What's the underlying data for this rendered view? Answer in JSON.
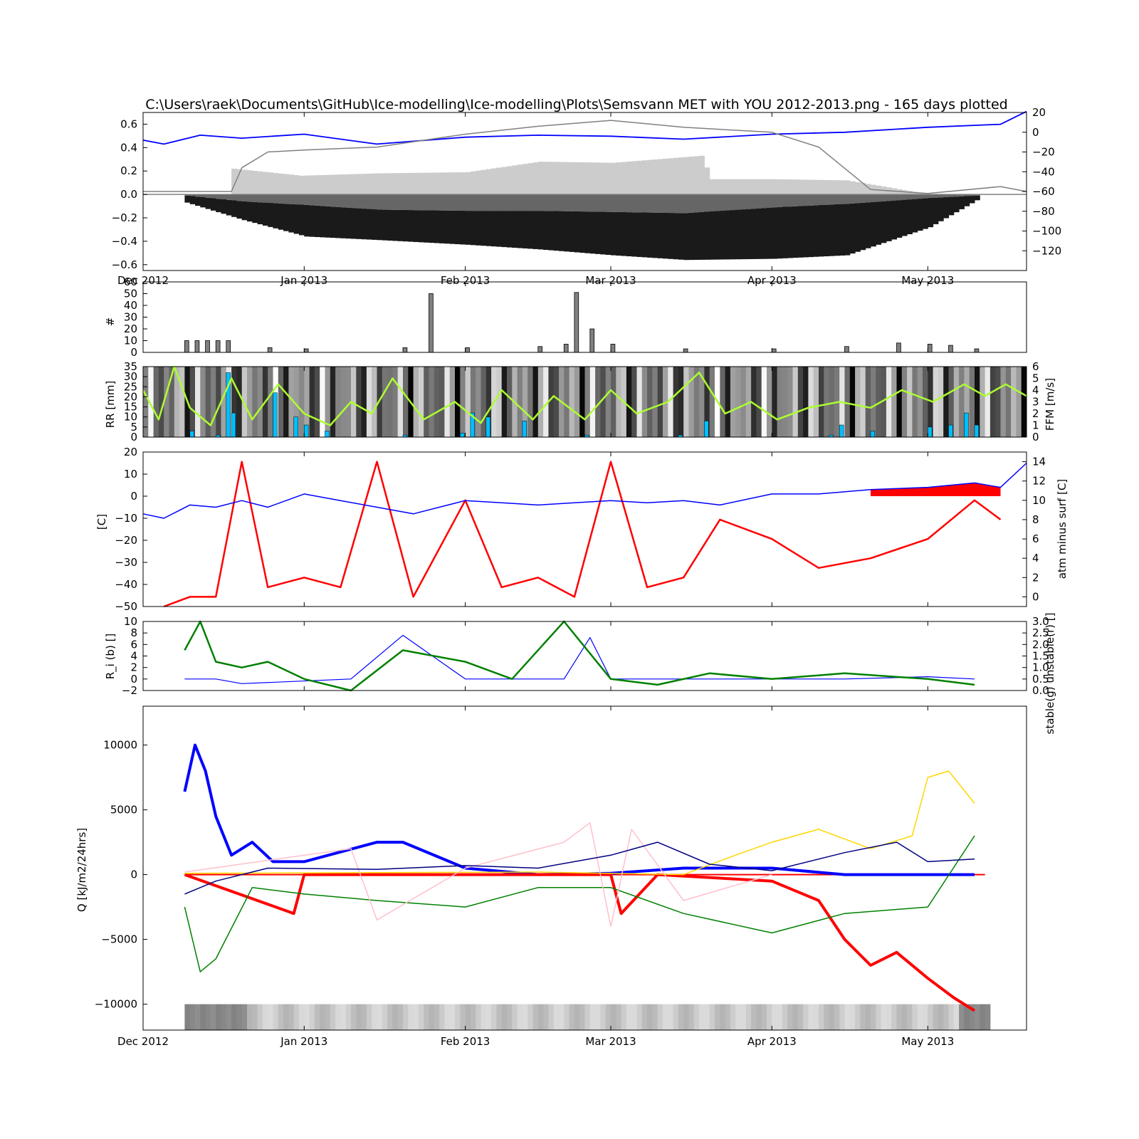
{
  "title": "C:\\Users\\raek\\Documents\\GitHub\\Ice-modelling\\Ice-modelling\\Plots\\Semsvann MET with YOU 2012-2013.png - 165 days plotted",
  "x_tick_labels": [
    "Dec 2012",
    "Jan 2013",
    "Feb 2013",
    "Mar 2013",
    "Apr 2013",
    "May 2013"
  ],
  "colors": {
    "black_ice": "#1a1a1a",
    "slush_ice": "#666666",
    "snow": "#cccccc",
    "water": "#0000ff",
    "air_temp": "#0000ff",
    "wind": "#adff2f",
    "precip": "#00bfff",
    "warm_fill": "#ff0000",
    "grey_line": "#808080"
  },
  "chart_data": [
    {
      "type": "area",
      "panel": "ice-column",
      "title": "C:\\Users\\raek\\Documents\\GitHub\\Ice-modelling\\Ice-modelling\\Plots\\Semsvann MET with YOU 2012-2013.png - 165 days plotted",
      "x_start": "2012-12-01",
      "x_end": "2013-05-20",
      "ylim": [
        -0.65,
        0.7
      ],
      "yticks": [
        "0.6",
        "0.4",
        "0.2",
        "0.0",
        "−0.2",
        "−0.4",
        "−0.6"
      ],
      "y2lim": [
        -140,
        20
      ],
      "y2ticks": [
        "20",
        "0",
        "−20",
        "−40",
        "−60",
        "−80",
        "−100",
        "−120"
      ],
      "ice_series": [
        {
          "name": "black ice bottom",
          "dates": [
            "2012-12-09",
            "2012-12-20",
            "2013-01-01",
            "2013-01-15",
            "2013-02-01",
            "2013-02-15",
            "2013-03-01",
            "2013-03-15",
            "2013-04-01",
            "2013-04-15",
            "2013-05-01",
            "2013-05-10"
          ],
          "values": [
            -0.07,
            -0.22,
            -0.36,
            -0.39,
            -0.43,
            -0.47,
            -0.52,
            -0.56,
            -0.55,
            -0.52,
            -0.28,
            -0.05
          ]
        },
        {
          "name": "slush ice bottom",
          "dates": [
            "2012-12-09",
            "2012-12-20",
            "2013-01-01",
            "2013-01-15",
            "2013-02-01",
            "2013-02-15",
            "2013-03-01",
            "2013-03-15",
            "2013-04-01",
            "2013-04-15",
            "2013-05-01",
            "2013-05-10"
          ],
          "values": [
            -0.01,
            -0.06,
            -0.09,
            -0.13,
            -0.14,
            -0.14,
            -0.15,
            -0.16,
            -0.11,
            -0.08,
            -0.03,
            -0.01
          ]
        },
        {
          "name": "snow top",
          "dates": [
            "2012-12-18",
            "2012-12-31",
            "2013-01-15",
            "2013-02-01",
            "2013-02-15",
            "2013-03-01",
            "2013-03-18",
            "2013-03-20",
            "2013-04-01",
            "2013-04-15",
            "2013-05-01"
          ],
          "values": [
            0.22,
            0.16,
            0.18,
            0.19,
            0.28,
            0.27,
            0.33,
            0.13,
            0.13,
            0.12,
            0.0
          ]
        }
      ],
      "lines": [
        {
          "name": "air temperature",
          "dates": [
            "2012-12-01",
            "2012-12-05",
            "2012-12-12",
            "2012-12-20",
            "2013-01-01",
            "2013-01-15",
            "2013-02-01",
            "2013-02-15",
            "2013-03-01",
            "2013-03-15",
            "2013-04-01",
            "2013-04-15",
            "2013-05-01",
            "2013-05-15",
            "2013-05-20"
          ],
          "values": [
            -8,
            -12,
            -3,
            -6,
            -2,
            -12,
            -5,
            -3,
            -4,
            -7,
            -2,
            0,
            5,
            8,
            21
          ]
        },
        {
          "name": "snow depth",
          "dates": [
            "2012-12-01",
            "2012-12-18",
            "2012-12-20",
            "2012-12-25",
            "2013-01-01",
            "2013-01-15",
            "2013-02-01",
            "2013-02-15",
            "2013-03-01",
            "2013-03-15",
            "2013-04-01",
            "2013-04-10",
            "2013-04-20",
            "2013-05-01",
            "2013-05-15",
            "2013-05-20"
          ],
          "values": [
            -60,
            -60,
            -36,
            -20,
            -18,
            -15,
            -2,
            6,
            12,
            5,
            0,
            -15,
            -58,
            -62,
            -55,
            -60
          ]
        }
      ]
    },
    {
      "type": "bar",
      "panel": "count",
      "ylabel": "#",
      "ylim": [
        0,
        60
      ],
      "yticks": [
        "60",
        "50",
        "40",
        "30",
        "20",
        "10",
        "0"
      ],
      "dates": [
        "2012-12-09",
        "2012-12-11",
        "2012-12-13",
        "2012-12-15",
        "2012-12-17",
        "2012-12-25",
        "2013-01-01",
        "2013-01-20",
        "2013-01-25",
        "2013-02-01",
        "2013-02-15",
        "2013-02-20",
        "2013-02-22",
        "2013-02-25",
        "2013-03-01",
        "2013-03-15",
        "2013-04-01",
        "2013-04-15",
        "2013-04-25",
        "2013-05-01",
        "2013-05-05",
        "2013-05-10"
      ],
      "values": [
        10,
        10,
        10,
        10,
        10,
        4,
        3,
        4,
        50,
        4,
        5,
        7,
        51,
        20,
        7,
        3,
        3,
        5,
        8,
        7,
        6,
        3
      ]
    },
    {
      "type": "bar",
      "panel": "precipitation-wind",
      "ylabel": "RR [mm]",
      "ylim": [
        0,
        35
      ],
      "yticks": [
        "35",
        "30",
        "25",
        "20",
        "15",
        "10",
        "5",
        "0"
      ],
      "y2label": "FFM [m/s]",
      "y2lim": [
        0,
        6
      ],
      "y2ticks": [
        "6",
        "5",
        "4",
        "3",
        "2",
        "1",
        "0"
      ],
      "precip_dates": [
        "2012-12-10",
        "2012-12-15",
        "2012-12-17",
        "2012-12-18",
        "2012-12-26",
        "2012-12-30",
        "2013-01-01",
        "2013-01-05",
        "2013-01-20",
        "2013-01-31",
        "2013-02-02",
        "2013-02-05",
        "2013-02-12",
        "2013-02-24",
        "2013-03-14",
        "2013-03-19",
        "2013-04-12",
        "2013-04-14",
        "2013-04-20",
        "2013-05-01",
        "2013-05-05",
        "2013-05-08",
        "2013-05-10"
      ],
      "precip_values": [
        3,
        1,
        32,
        12,
        22,
        10,
        6,
        3,
        1,
        2,
        12,
        10,
        8,
        1,
        1,
        8,
        1,
        6,
        3,
        5,
        6,
        12,
        6
      ],
      "wind_dates": [
        "2012-12-01",
        "2012-12-04",
        "2012-12-07",
        "2012-12-10",
        "2012-12-14",
        "2012-12-18",
        "2012-12-22",
        "2012-12-27",
        "2013-01-01",
        "2013-01-06",
        "2013-01-10",
        "2013-01-14",
        "2013-01-18",
        "2013-01-24",
        "2013-01-30",
        "2013-02-04",
        "2013-02-08",
        "2013-02-14",
        "2013-02-18",
        "2013-02-24",
        "2013-03-01",
        "2013-03-06",
        "2013-03-12",
        "2013-03-18",
        "2013-03-23",
        "2013-03-28",
        "2013-04-02",
        "2013-04-08",
        "2013-04-14",
        "2013-04-20",
        "2013-04-26",
        "2013-05-02",
        "2013-05-08",
        "2013-05-12",
        "2013-05-16",
        "2013-05-20"
      ],
      "wind_values": [
        4,
        1.5,
        6,
        2.5,
        1,
        5,
        1.5,
        4.5,
        2,
        1,
        3,
        2,
        5,
        1.5,
        3,
        1.2,
        4,
        1.5,
        3.5,
        1.5,
        4,
        2,
        3,
        5.5,
        2,
        3,
        1.5,
        2.5,
        3,
        2.5,
        4,
        3,
        4.5,
        3.5,
        4.5,
        3.5
      ]
    },
    {
      "type": "line",
      "panel": "temperatures",
      "ylabel": "[C]",
      "ylim": [
        -50,
        20
      ],
      "yticks": [
        "20",
        "10",
        "0",
        "−10",
        "−20",
        "−30",
        "−40",
        "−50"
      ],
      "y2label": "atm minus surf [C]",
      "y2lim": [
        -1,
        15
      ],
      "y2ticks": [
        "14",
        "12",
        "10",
        "8",
        "6",
        "4",
        "2",
        "0"
      ],
      "series": [
        {
          "name": "air temperature",
          "dates": [
            "2012-12-01",
            "2012-12-05",
            "2012-12-10",
            "2012-12-15",
            "2012-12-20",
            "2012-12-25",
            "2013-01-01",
            "2013-01-08",
            "2013-01-15",
            "2013-01-22",
            "2013-02-01",
            "2013-02-08",
            "2013-02-15",
            "2013-02-22",
            "2013-03-01",
            "2013-03-08",
            "2013-03-15",
            "2013-03-22",
            "2013-04-01",
            "2013-04-10",
            "2013-04-20",
            "2013-05-01",
            "2013-05-10",
            "2013-05-15",
            "2013-05-20"
          ],
          "values": [
            -8,
            -10,
            -4,
            -5,
            -2,
            -5,
            1,
            -2,
            -5,
            -8,
            -2,
            -3,
            -4,
            -3,
            -2,
            -3,
            -2,
            -4,
            1,
            1,
            3,
            4,
            6,
            4,
            15
          ]
        },
        {
          "name": "atm minus surf",
          "dates": [
            "2012-12-05",
            "2012-12-10",
            "2012-12-15",
            "2012-12-20",
            "2012-12-25",
            "2013-01-01",
            "2013-01-08",
            "2013-01-15",
            "2013-01-22",
            "2013-02-01",
            "2013-02-08",
            "2013-02-15",
            "2013-02-22",
            "2013-03-01",
            "2013-03-08",
            "2013-03-15",
            "2013-03-22",
            "2013-04-01",
            "2013-04-10",
            "2013-04-20",
            "2013-05-01",
            "2013-05-10",
            "2013-05-15"
          ],
          "values": [
            -1,
            0,
            0,
            14,
            1,
            2,
            1,
            14,
            0,
            10,
            1,
            2,
            0,
            14,
            1,
            2,
            8,
            6,
            3,
            4,
            6,
            10,
            8
          ]
        }
      ]
    },
    {
      "type": "line",
      "panel": "richardson",
      "ylabel": "R_i (b) []",
      "ylim": [
        -2,
        10
      ],
      "yticks": [
        "10",
        "8",
        "6",
        "4",
        "2",
        "0",
        "−2"
      ],
      "y2label": "stable(g) unstable(r) []",
      "y2lim": [
        0,
        3
      ],
      "y2ticks": [
        "3.0",
        "2.5",
        "2.0",
        "1.5",
        "1.0",
        "0.5",
        "0.0"
      ],
      "series": [
        {
          "name": "R_i (b)",
          "dates": [
            "2012-12-09",
            "2012-12-12",
            "2012-12-15",
            "2012-12-20",
            "2012-12-25",
            "2013-01-01",
            "2013-01-10",
            "2013-01-20",
            "2013-02-01",
            "2013-02-10",
            "2013-02-20",
            "2013-03-01",
            "2013-03-10",
            "2013-03-20",
            "2013-04-01",
            "2013-04-15",
            "2013-05-01",
            "2013-05-10"
          ],
          "values": [
            5,
            10,
            3,
            2,
            3,
            0,
            -2,
            5,
            3,
            0,
            10,
            0,
            -1,
            1,
            0,
            1,
            0,
            -1
          ]
        },
        {
          "name": "stable / unstable",
          "dates": [
            "2012-12-09",
            "2012-12-15",
            "2012-12-20",
            "2013-01-10",
            "2013-01-20",
            "2013-02-01",
            "2013-02-20",
            "2013-02-25",
            "2013-03-01",
            "2013-03-15",
            "2013-04-01",
            "2013-04-15",
            "2013-05-01",
            "2013-05-10"
          ],
          "values": [
            0.5,
            0.5,
            0.3,
            0.5,
            2.4,
            0.5,
            0.5,
            2.3,
            0.5,
            0.5,
            0.5,
            0.5,
            0.6,
            0.5
          ]
        }
      ]
    },
    {
      "type": "line",
      "panel": "energy-balance",
      "ylabel": "Q [kJ/m2/24hrs]",
      "ylim": [
        -12000,
        13000
      ],
      "yticks": [
        "10000",
        "5000",
        "0",
        "−5000",
        "−10000"
      ],
      "series": [
        {
          "name": "blue thick",
          "dates": [
            "2012-12-09",
            "2012-12-11",
            "2012-12-13",
            "2012-12-15",
            "2012-12-18",
            "2012-12-22",
            "2012-12-26",
            "2013-01-01",
            "2013-01-15",
            "2013-01-20",
            "2013-02-01",
            "2013-02-15",
            "2013-03-01",
            "2013-03-15",
            "2013-04-01",
            "2013-04-15",
            "2013-05-01",
            "2013-05-10"
          ],
          "values": [
            6400,
            10000,
            8000,
            4500,
            1500,
            2500,
            1000,
            1000,
            2500,
            2500,
            500,
            0,
            100,
            500,
            500,
            0,
            0,
            0
          ]
        },
        {
          "name": "red thick",
          "dates": [
            "2012-12-09",
            "2012-12-30",
            "2013-01-01",
            "2013-02-01",
            "2013-03-01",
            "2013-03-03",
            "2013-03-10",
            "2013-04-01",
            "2013-04-10",
            "2013-04-15",
            "2013-04-20",
            "2013-04-25",
            "2013-05-01",
            "2013-05-06",
            "2013-05-10"
          ],
          "values": [
            0,
            -3000,
            0,
            0,
            0,
            -3000,
            0,
            -500,
            -2000,
            -5000,
            -7000,
            -6000,
            -8000,
            -9500,
            -10500
          ]
        },
        {
          "name": "green",
          "dates": [
            "2012-12-09",
            "2012-12-12",
            "2012-12-15",
            "2012-12-22",
            "2013-01-01",
            "2013-01-15",
            "2013-02-01",
            "2013-02-15",
            "2013-03-01",
            "2013-03-15",
            "2013-04-01",
            "2013-04-15",
            "2013-05-01",
            "2013-05-10"
          ],
          "values": [
            -2500,
            -7500,
            -6500,
            -1000,
            -1500,
            -2000,
            -2500,
            -1000,
            -1000,
            -3000,
            -4500,
            -3000,
            -2500,
            3000
          ]
        },
        {
          "name": "yellow",
          "dates": [
            "2012-12-09",
            "2013-02-15",
            "2013-03-15",
            "2013-03-25",
            "2013-04-01",
            "2013-04-10",
            "2013-04-20",
            "2013-04-28",
            "2013-05-01",
            "2013-05-05",
            "2013-05-10"
          ],
          "values": [
            100,
            200,
            0,
            1500,
            2500,
            3500,
            2000,
            3000,
            7500,
            8000,
            5500
          ]
        },
        {
          "name": "pink",
          "dates": [
            "2012-12-09",
            "2013-01-10",
            "2013-01-15",
            "2013-02-01",
            "2013-02-20",
            "2013-02-25",
            "2013-03-01",
            "2013-03-05",
            "2013-03-15",
            "2013-04-01"
          ],
          "values": [
            200,
            2000,
            -3500,
            500,
            2500,
            4000,
            -4000,
            3500,
            -2000,
            0
          ]
        },
        {
          "name": "navy",
          "dates": [
            "2012-12-09",
            "2012-12-15",
            "2012-12-25",
            "2013-01-15",
            "2013-02-01",
            "2013-02-15",
            "2013-03-01",
            "2013-03-10",
            "2013-03-20",
            "2013-04-01",
            "2013-04-15",
            "2013-04-25",
            "2013-05-01",
            "2013-05-10"
          ],
          "values": [
            -1500,
            -500,
            500,
            400,
            700,
            500,
            1500,
            2500,
            800,
            300,
            1700,
            2500,
            1000,
            1200
          ]
        }
      ]
    }
  ]
}
